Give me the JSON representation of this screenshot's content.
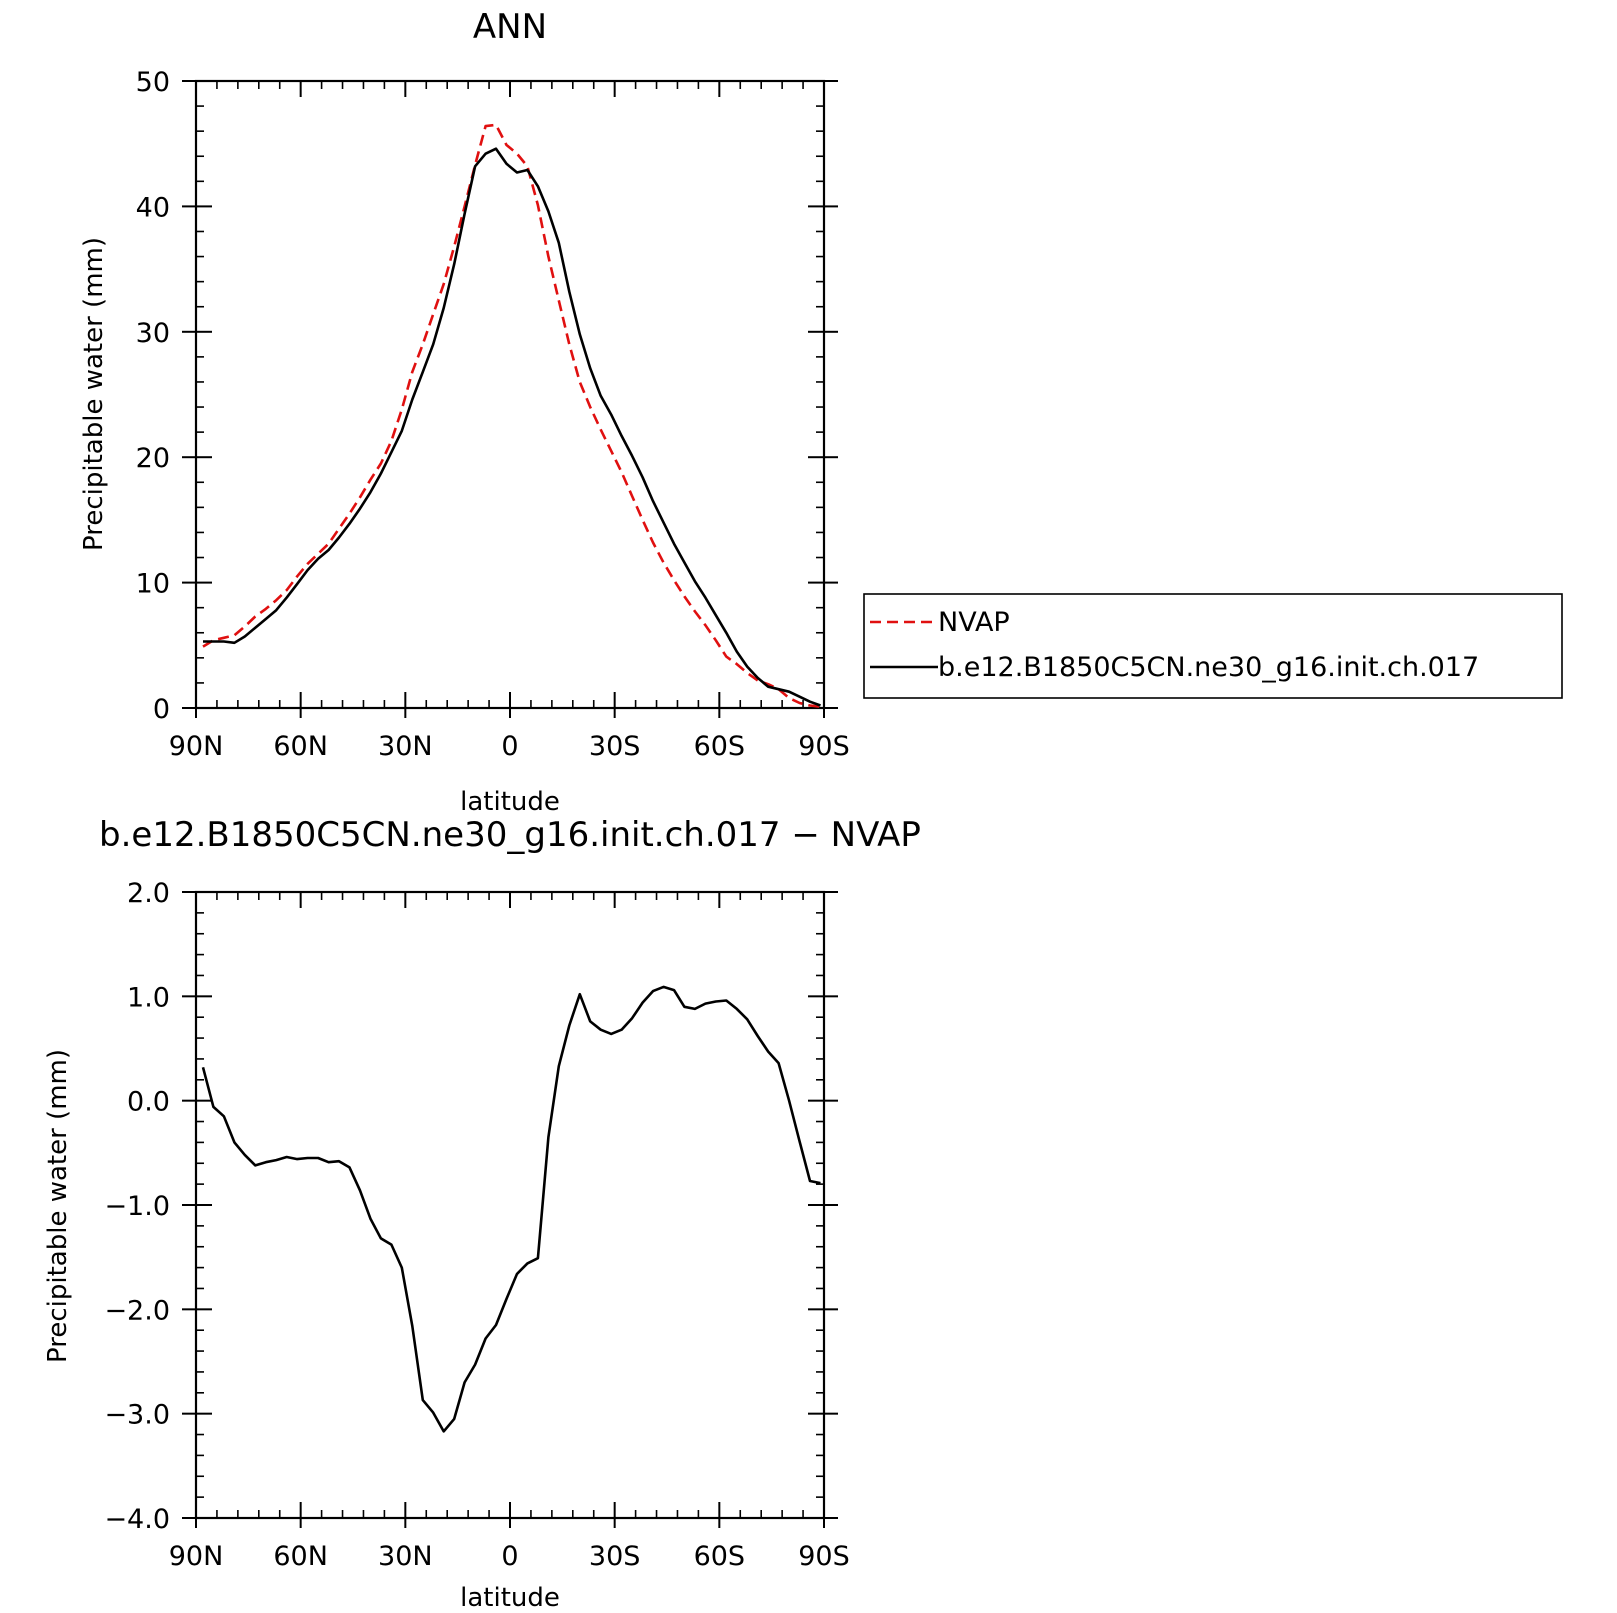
{
  "chart_data": [
    {
      "type": "line",
      "title": "ANN",
      "xlabel": "latitude",
      "ylabel": "Precipitable water (mm)",
      "xlim": [
        90,
        -90
      ],
      "ylim": [
        0,
        50
      ],
      "xticks": [
        90,
        60,
        30,
        0,
        -30,
        -60,
        -90
      ],
      "xtick_labels": [
        "90N",
        "60N",
        "30N",
        "0",
        "30S",
        "60S",
        "90S"
      ],
      "yticks": [
        0,
        10,
        20,
        30,
        40,
        50
      ],
      "ytick_labels": [
        "0",
        "10",
        "20",
        "30",
        "40",
        "50"
      ],
      "legend_position": "right",
      "x": [
        88,
        85,
        82,
        79,
        76,
        73,
        70,
        67,
        64,
        61,
        58,
        55,
        52,
        49,
        46,
        43,
        40,
        37,
        34,
        31,
        28,
        25,
        22,
        19,
        16,
        13,
        10,
        7,
        4,
        1,
        -2,
        -5,
        -8,
        -11,
        -14,
        -17,
        -20,
        -23,
        -26,
        -29,
        -32,
        -35,
        -38,
        -41,
        -44,
        -47,
        -50,
        -53,
        -56,
        -59,
        -62,
        -65,
        -68,
        -71,
        -74,
        -77,
        -80,
        -83,
        -86,
        -89
      ],
      "series": [
        {
          "name": "NVAP",
          "color": "#e01010",
          "dash": "dashed",
          "values": [
            4.9,
            5.4,
            5.6,
            5.8,
            6.5,
            7.3,
            7.9,
            8.6,
            9.4,
            10.5,
            11.5,
            12.3,
            13.1,
            14.3,
            15.5,
            16.8,
            18.2,
            19.5,
            21.3,
            23.8,
            26.8,
            29.0,
            31.4,
            33.8,
            36.8,
            40.0,
            43.3,
            46.4,
            46.5,
            44.9,
            44.2,
            43.2,
            40.1,
            36.0,
            32.5,
            29.0,
            26.0,
            24.0,
            22.2,
            20.5,
            18.8,
            16.9,
            15.0,
            13.2,
            11.6,
            10.2,
            8.9,
            7.7,
            6.6,
            5.4,
            4.1,
            3.5,
            2.8,
            2.2,
            1.9,
            1.5,
            0.8,
            0.4,
            0.2,
            0.1
          ]
        },
        {
          "name": "b.e12.B1850C5CN.ne30_g16.init.ch.017",
          "color": "#000000",
          "dash": "solid",
          "values": [
            5.3,
            5.3,
            5.3,
            5.2,
            5.7,
            6.4,
            7.1,
            7.8,
            8.8,
            9.9,
            11.0,
            11.9,
            12.6,
            13.6,
            14.7,
            15.9,
            17.2,
            18.7,
            20.4,
            22.1,
            24.6,
            26.8,
            29.0,
            31.9,
            35.4,
            39.4,
            43.2,
            44.2,
            44.6,
            43.4,
            42.7,
            42.9,
            41.6,
            39.6,
            37.1,
            33.2,
            29.8,
            27.1,
            24.9,
            23.4,
            21.7,
            20.1,
            18.4,
            16.5,
            14.8,
            13.1,
            11.6,
            10.1,
            8.8,
            7.4,
            6.0,
            4.5,
            3.3,
            2.4,
            1.7,
            1.5,
            1.3,
            0.9,
            0.5,
            0.2
          ]
        }
      ]
    },
    {
      "type": "line",
      "title": "b.e12.B1850C5CN.ne30_g16.init.ch.017 − NVAP",
      "xlabel": "latitude",
      "ylabel": "Precipitable water (mm)",
      "xlim": [
        90,
        -90
      ],
      "ylim": [
        -4.0,
        2.0
      ],
      "xticks": [
        90,
        60,
        30,
        0,
        -30,
        -60,
        -90
      ],
      "xtick_labels": [
        "90N",
        "60N",
        "30N",
        "0",
        "30S",
        "60S",
        "90S"
      ],
      "yticks": [
        2.0,
        1.0,
        0.0,
        -1.0,
        -2.0,
        -3.0,
        -4.0
      ],
      "ytick_labels": [
        "2.0",
        "1.0",
        "0.0",
        "−1.0",
        "−2.0",
        "−3.0",
        "−4.0"
      ],
      "x": [
        88,
        85,
        82,
        79,
        76,
        73,
        70,
        67,
        64,
        61,
        58,
        55,
        52,
        49,
        46,
        43,
        40,
        37,
        34,
        31,
        28,
        25,
        22,
        19,
        16,
        13,
        10,
        7,
        4,
        1,
        -2,
        -5,
        -8,
        -11,
        -14,
        -17,
        -20,
        -23,
        -26,
        -29,
        -32,
        -35,
        -38,
        -41,
        -44,
        -47,
        -50,
        -53,
        -56,
        -59,
        -62,
        -65,
        -68,
        -71,
        -74,
        -77,
        -80,
        -83,
        -86,
        -89
      ],
      "series": [
        {
          "color": "#000000",
          "dash": "solid",
          "values": [
            0.32,
            -0.06,
            -0.15,
            -0.4,
            -0.52,
            -0.62,
            -0.59,
            -0.57,
            -0.54,
            -0.56,
            -0.55,
            -0.55,
            -0.59,
            -0.58,
            -0.64,
            -0.86,
            -1.13,
            -1.32,
            -1.38,
            -1.6,
            -2.16,
            -2.87,
            -2.99,
            -3.17,
            -3.05,
            -2.7,
            -2.53,
            -2.28,
            -2.15,
            -1.9,
            -1.66,
            -1.56,
            -1.51,
            -0.35,
            0.33,
            0.72,
            1.02,
            0.76,
            0.68,
            0.64,
            0.68,
            0.79,
            0.94,
            1.05,
            1.09,
            1.06,
            0.9,
            0.88,
            0.93,
            0.95,
            0.96,
            0.88,
            0.78,
            0.62,
            0.47,
            0.36,
            0.0,
            -0.39,
            -0.77,
            -0.79
          ]
        }
      ]
    }
  ]
}
